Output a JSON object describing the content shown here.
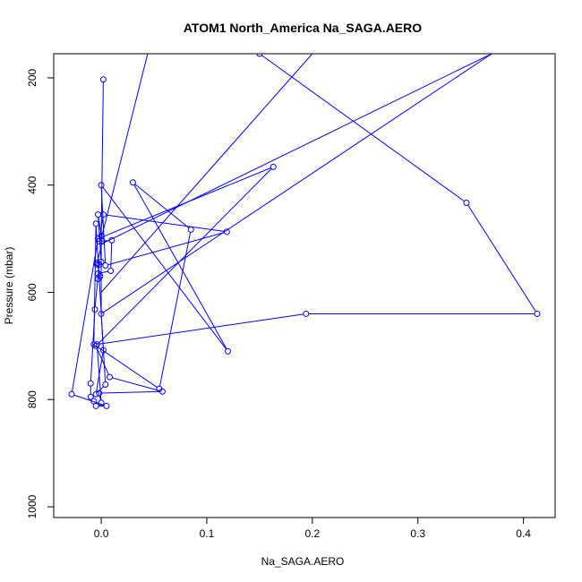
{
  "chart_data": {
    "type": "line",
    "title": "ATOM1 North_America Na_SAGA.AERO",
    "xlabel": "Na_SAGA.AERO",
    "ylabel": "Pressure (mbar)",
    "xlim": [
      -0.045,
      0.43
    ],
    "ylim": [
      1020,
      155
    ],
    "y_reversed": true,
    "x_ticks": [
      0.0,
      0.1,
      0.2,
      0.3,
      0.4
    ],
    "x_tick_labels": [
      "0.0",
      "0.1",
      "0.2",
      "0.3",
      "0.4"
    ],
    "y_ticks": [
      200,
      400,
      600,
      800,
      1000
    ],
    "y_tick_labels": [
      "200",
      "400",
      "600",
      "800",
      "1000"
    ],
    "grid": false,
    "legend": "none",
    "series": [
      {
        "color": "#0000ff",
        "marker": "open-circle",
        "points": [
          [
            0.002,
            203
          ],
          [
            0.0,
            495
          ],
          [
            0.0,
            640
          ],
          [
            0.002,
            708
          ],
          [
            -0.005,
            790
          ],
          [
            0.004,
            772
          ],
          [
            -0.005,
            472
          ],
          [
            -0.007,
            697
          ],
          [
            0.055,
            780
          ],
          [
            0.085,
            483
          ],
          [
            0.03,
            395
          ],
          [
            0.12,
            710
          ],
          [
            0.0,
            400
          ],
          [
            0.004,
            550
          ],
          [
            0.119,
            487
          ],
          [
            0.002,
            455
          ],
          [
            -0.002,
            505
          ],
          [
            0.01,
            503
          ],
          [
            0.009,
            560
          ],
          [
            -0.003,
            565
          ],
          [
            -0.003,
            575
          ],
          [
            -0.001,
            570
          ],
          [
            -0.004,
            545
          ],
          [
            -0.004,
            548
          ],
          [
            0.001,
            505
          ],
          [
            -0.003,
            455
          ],
          [
            0.0,
            543
          ],
          [
            -0.002,
            548
          ],
          [
            -0.006,
            632
          ],
          [
            -0.01,
            770
          ],
          [
            -0.01,
            795
          ],
          [
            -0.007,
            803
          ],
          [
            -0.005,
            812
          ],
          [
            0.005,
            812
          ],
          [
            -0.028,
            790
          ],
          [
            -0.003,
            500
          ],
          [
            0.163,
            366
          ],
          [
            -0.005,
            700
          ],
          [
            0.008,
            758
          ],
          [
            0.058,
            785
          ],
          [
            -0.002,
            788
          ],
          [
            0.0,
            806
          ],
          [
            -0.004,
            697
          ],
          [
            0.194,
            640
          ],
          [
            0.413,
            640
          ],
          [
            0.346,
            433
          ],
          [
            0.15,
            155
          ]
        ],
        "offscreen_segments": [
          [
            [
              0.0,
              500
            ],
            [
              0.044,
              155
            ]
          ],
          [
            [
              0.2,
              155
            ],
            [
              0.0,
              600
            ]
          ],
          [
            [
              0.0,
              510
            ],
            [
              0.37,
              155
            ]
          ],
          [
            [
              0.0,
              640
            ],
            [
              0.37,
              155
            ]
          ]
        ]
      }
    ]
  }
}
